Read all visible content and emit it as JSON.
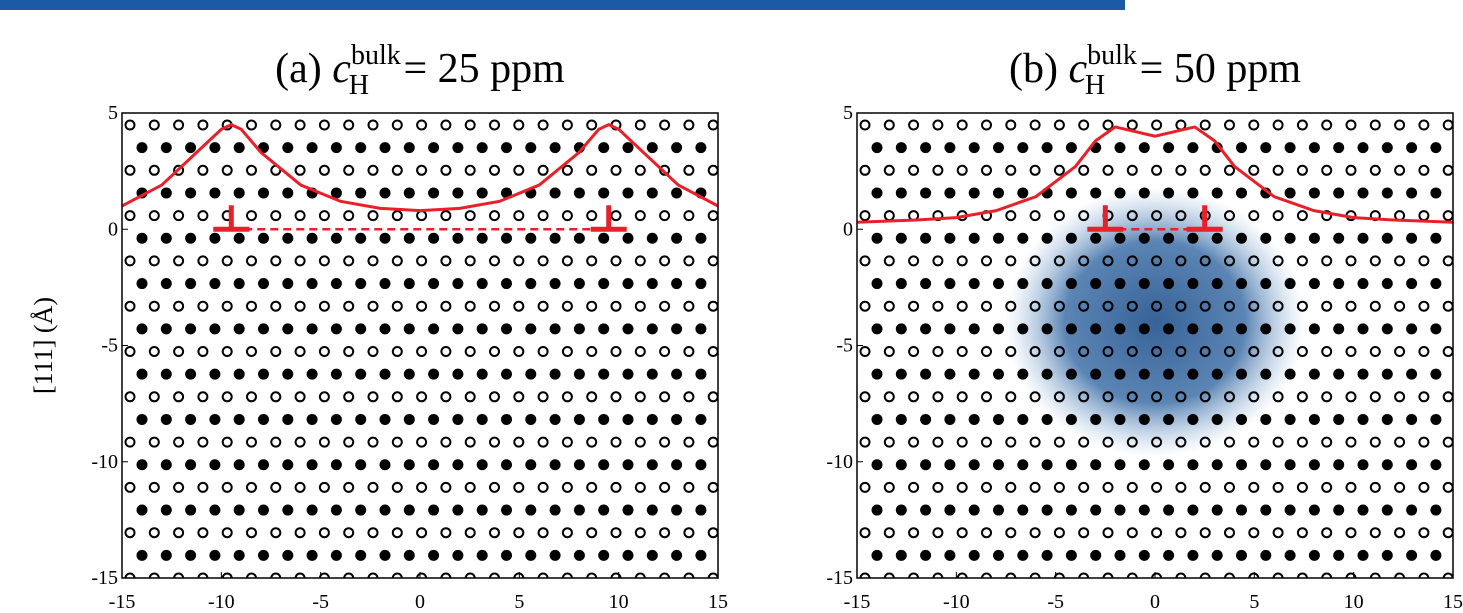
{
  "chart_data": [
    {
      "type": "line",
      "title": {
        "prefix": "(a) ",
        "symbol": "c",
        "subscript": "H",
        "superscript": "bulk",
        "suffix": " = 25 ppm"
      },
      "y_label": "[111] (Å)",
      "xlim": [
        -15,
        15
      ],
      "ylim": [
        -15,
        5
      ],
      "xticks": [
        -15,
        -10,
        -5,
        0,
        5,
        10,
        15
      ],
      "yticks": [
        -15,
        -10,
        -5,
        0,
        5
      ],
      "dislocation_x": [
        -9.5,
        9.5
      ],
      "series": [
        {
          "color": "#e8202a",
          "x": [
            -15,
            -13,
            -11,
            -10,
            -9.5,
            -9,
            -8,
            -6,
            -4,
            -2,
            0,
            2,
            4,
            6,
            8,
            9,
            9.5,
            10,
            11,
            13,
            15
          ],
          "values": [
            1.0,
            1.9,
            3.5,
            4.3,
            4.5,
            4.3,
            3.3,
            1.9,
            1.2,
            0.9,
            0.8,
            0.9,
            1.2,
            1.9,
            3.3,
            4.3,
            4.5,
            4.3,
            3.5,
            1.9,
            1.0
          ]
        }
      ]
    },
    {
      "type": "line",
      "title": {
        "prefix": "(b) ",
        "symbol": "c",
        "subscript": "H",
        "superscript": "bulk",
        "suffix": " = 50 ppm"
      },
      "xlim": [
        -15,
        15
      ],
      "ylim": [
        -15,
        5
      ],
      "xticks": [
        -15,
        -10,
        -5,
        0,
        5,
        10,
        15
      ],
      "yticks": [
        -15,
        -10,
        -5,
        0,
        5
      ],
      "dislocation_x": [
        -2.5,
        2.5
      ],
      "series": [
        {
          "color": "#e8202a",
          "x": [
            -15,
            -12,
            -10,
            -8,
            -6,
            -4,
            -3,
            -2,
            -1,
            0,
            1,
            2,
            3,
            4,
            6,
            8,
            10,
            12,
            15
          ],
          "values": [
            0.3,
            0.4,
            0.5,
            0.8,
            1.4,
            2.7,
            3.8,
            4.4,
            4.2,
            4.0,
            4.2,
            4.4,
            3.8,
            2.7,
            1.4,
            0.8,
            0.5,
            0.4,
            0.3
          ]
        }
      ]
    }
  ]
}
